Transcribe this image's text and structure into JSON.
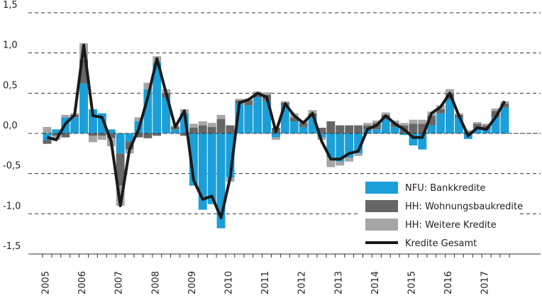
{
  "chart_data": {
    "type": "stacked_bar_line",
    "categories": [
      "2005",
      null,
      null,
      null,
      "2006",
      null,
      null,
      null,
      "2007",
      null,
      null,
      null,
      "2008",
      null,
      null,
      null,
      "2009",
      null,
      null,
      null,
      "2010",
      null,
      null,
      null,
      "2011",
      null,
      null,
      null,
      "2012",
      null,
      null,
      null,
      "2013",
      null,
      null,
      null,
      "2014",
      null,
      null,
      null,
      "2015",
      null,
      null,
      null,
      "2016",
      null,
      null,
      null,
      "2017",
      null,
      null
    ],
    "series": [
      {
        "name": "NFU: Bankkredite",
        "color": "#1b9fd8",
        "kind": "bar",
        "values": [
          -0.08,
          0.05,
          0.2,
          0.2,
          0.62,
          0.3,
          0.25,
          0.05,
          -0.25,
          -0.1,
          0.15,
          0.55,
          0.88,
          0.45,
          0.05,
          0.25,
          -0.65,
          -0.95,
          -0.88,
          -1.18,
          -0.55,
          0.38,
          0.35,
          0.45,
          0.4,
          -0.05,
          0.35,
          0.15,
          0.08,
          0.2,
          -0.05,
          -0.3,
          -0.35,
          -0.3,
          -0.25,
          0.05,
          0.05,
          0.18,
          0.08,
          -0.02,
          -0.15,
          -0.2,
          0.1,
          0.25,
          0.42,
          0.2,
          -0.07,
          0.07,
          0.05,
          0.2,
          0.32
        ]
      },
      {
        "name": "HH: Wohnungsbaukredite",
        "color": "#666666",
        "kind": "bar",
        "values": [
          -0.05,
          -0.03,
          -0.05,
          0.03,
          0.3,
          -0.03,
          -0.03,
          -0.06,
          -0.4,
          -0.1,
          -0.05,
          -0.06,
          -0.03,
          0.05,
          0.03,
          -0.03,
          0.07,
          0.1,
          0.08,
          0.18,
          0.1,
          0.03,
          0.06,
          0.05,
          0.08,
          0.07,
          0.03,
          0.05,
          0.05,
          0.05,
          0.07,
          0.15,
          0.1,
          0.1,
          0.1,
          0.05,
          0.08,
          0.05,
          0.05,
          0.1,
          0.12,
          0.12,
          0.12,
          0.05,
          0.08,
          0.03,
          0.02,
          0.05,
          0.05,
          0.08,
          0.05
        ]
      },
      {
        "name": "HH: Weitere Kredite",
        "color": "#a6a6a6",
        "kind": "bar",
        "values": [
          0.08,
          -0.05,
          0.03,
          0.02,
          0.2,
          -0.08,
          -0.05,
          -0.1,
          -0.25,
          -0.05,
          0.05,
          0.08,
          0.08,
          0.05,
          0.02,
          0.05,
          0.05,
          0.05,
          0.05,
          0.05,
          -0.05,
          0.02,
          0.02,
          0.02,
          0.03,
          -0.03,
          0.02,
          0.05,
          0.03,
          0.04,
          -0.03,
          -0.12,
          -0.05,
          -0.05,
          -0.03,
          0.03,
          0.03,
          0.03,
          0.03,
          0.03,
          0.05,
          0.05,
          0.05,
          0.05,
          0.05,
          0.02,
          0.02,
          0.02,
          0.02,
          0.03,
          0.03
        ]
      },
      {
        "name": "Kredite Gesamt",
        "color": "#1a1a1a",
        "kind": "line",
        "values": [
          -0.05,
          -0.08,
          0.12,
          0.23,
          1.1,
          0.22,
          0.2,
          -0.1,
          -0.9,
          -0.2,
          0.05,
          0.45,
          0.93,
          0.5,
          0.08,
          0.28,
          -0.58,
          -0.82,
          -0.78,
          -1.05,
          -0.55,
          0.38,
          0.42,
          0.5,
          0.45,
          0.02,
          0.37,
          0.22,
          0.13,
          0.25,
          -0.1,
          -0.32,
          -0.32,
          -0.25,
          -0.22,
          0.05,
          0.1,
          0.22,
          0.12,
          0.05,
          -0.05,
          -0.05,
          0.25,
          0.33,
          0.5,
          0.22,
          -0.03,
          0.07,
          0.05,
          0.2,
          0.4
        ]
      }
    ],
    "ylim": [
      -1.5,
      1.5
    ],
    "yticks": [
      {
        "value": -1.5,
        "label": "-1,5"
      },
      {
        "value": -1,
        "label": "-1,0"
      },
      {
        "value": -0.5,
        "label": "-0,5"
      },
      {
        "value": 0,
        "label": "0,0"
      },
      {
        "value": 0.5,
        "label": "0,5"
      },
      {
        "value": 1,
        "label": "1,0"
      },
      {
        "value": 1.5,
        "label": "1,5"
      }
    ],
    "grid": true,
    "legend": "lower right"
  }
}
